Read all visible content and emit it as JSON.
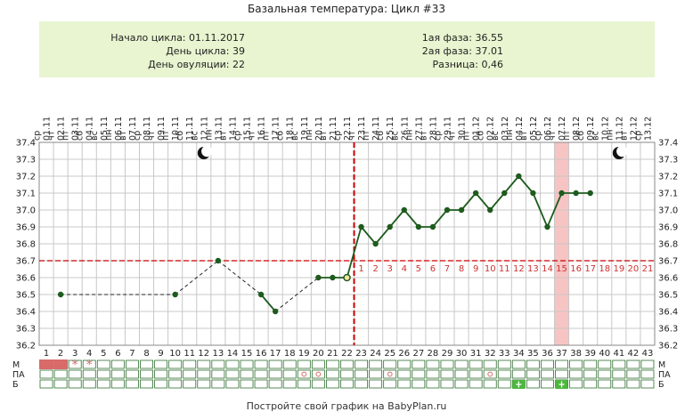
{
  "title": "Базальная температура: Цикл #33",
  "info": {
    "cycle_start": "Начало цикла: 01.11.2017",
    "cycle_day": "День цикла: 39",
    "ovulation_day": "День овуляции: 22",
    "phase1": "1ая фаза: 36.55",
    "phase2": "2ая фаза: 37.01",
    "difference": "Разница: 0,46"
  },
  "row_labels": {
    "m": "М",
    "pa": "ПА",
    "b": "Б"
  },
  "footer": "Постройте свой график на BabyPlan.ru",
  "colors": {
    "line": "#1e5b1e",
    "coverline": "#cc0000",
    "ovulation": "#cc0000",
    "highlight": "#f7c4c4",
    "info_bg": "#e8f5d0",
    "grid": "#c8c8c8",
    "menses": "#d86a6a",
    "b_mark": "#4cb83c"
  },
  "icons": [
    "moon-icon",
    "star-icon",
    "circle-icon",
    "plus-icon"
  ],
  "chart_data": {
    "type": "line",
    "title": "Базальная температура: Цикл #33",
    "days": [
      1,
      2,
      3,
      4,
      5,
      6,
      7,
      8,
      9,
      10,
      11,
      12,
      13,
      14,
      15,
      16,
      17,
      18,
      19,
      20,
      21,
      22,
      23,
      24,
      25,
      26,
      27,
      28,
      29,
      30,
      31,
      32,
      33,
      34,
      35,
      36,
      37,
      38,
      39,
      40,
      41,
      42,
      43
    ],
    "dates": [
      "01.11",
      "02.11",
      "03.11",
      "04.11",
      "05.11",
      "06.11",
      "07.11",
      "08.11",
      "09.11",
      "10.11",
      "11.11",
      "12.11",
      "13.11",
      "14.11",
      "15.11",
      "16.11",
      "17.11",
      "18.11",
      "19.11",
      "20.11",
      "21.11",
      "22.11",
      "23.11",
      "24.11",
      "25.11",
      "26.11",
      "27.11",
      "28.11",
      "29.11",
      "30.11",
      "01.12",
      "02.12",
      "03.12",
      "04.12",
      "05.12",
      "06.12",
      "07.12",
      "08.12",
      "09.12",
      "10.12",
      "11.12",
      "12.12",
      "13.12"
    ],
    "weekdays": [
      "ср",
      "чт",
      "пт",
      "сб",
      "вс",
      "пн",
      "вт",
      "ср",
      "чт",
      "пт",
      "сб",
      "вс",
      "пн",
      "вт",
      "ср",
      "чт",
      "пт",
      "сб",
      "вс",
      "пн",
      "вт",
      "ср",
      "чт",
      "пт",
      "сб",
      "вс",
      "пн",
      "вт",
      "ср",
      "чт",
      "пт",
      "сб",
      "вс",
      "пн",
      "вт",
      "ср",
      "чт",
      "пт",
      "сб",
      "вс",
      "пн",
      "вт",
      "ср"
    ],
    "y_ticks": [
      "37.4",
      "37.3",
      "37.2",
      "37.1",
      "37.0",
      "36.9",
      "36.8",
      "36.7",
      "36.6",
      "36.5",
      "36.4",
      "36.3",
      "36.2"
    ],
    "ylim": [
      36.2,
      37.4
    ],
    "coverline": 36.7,
    "ovulation_day": 22,
    "highlight_day": 37,
    "moon_days": [
      12,
      41
    ],
    "phase2_day_labels": [
      "1",
      "2",
      "3",
      "4",
      "5",
      "6",
      "7",
      "8",
      "9",
      "10",
      "11",
      "12",
      "13",
      "14",
      "15",
      "16",
      "17",
      "18",
      "19",
      "20",
      "21"
    ],
    "points": [
      {
        "day": 2,
        "temp": 36.5
      },
      {
        "day": 10,
        "temp": 36.5
      },
      {
        "day": 13,
        "temp": 36.7
      },
      {
        "day": 16,
        "temp": 36.5
      },
      {
        "day": 17,
        "temp": 36.4
      },
      {
        "day": 20,
        "temp": 36.6
      },
      {
        "day": 21,
        "temp": 36.6
      },
      {
        "day": 22,
        "temp": 36.6
      },
      {
        "day": 23,
        "temp": 36.9
      },
      {
        "day": 24,
        "temp": 36.8
      },
      {
        "day": 25,
        "temp": 36.9
      },
      {
        "day": 26,
        "temp": 37.0
      },
      {
        "day": 27,
        "temp": 36.9
      },
      {
        "day": 28,
        "temp": 36.9
      },
      {
        "day": 29,
        "temp": 37.0
      },
      {
        "day": 30,
        "temp": 37.0
      },
      {
        "day": 31,
        "temp": 37.1
      },
      {
        "day": 32,
        "temp": 37.0
      },
      {
        "day": 33,
        "temp": 37.1
      },
      {
        "day": 34,
        "temp": 37.2
      },
      {
        "day": 35,
        "temp": 37.1
      },
      {
        "day": 36,
        "temp": 36.9
      },
      {
        "day": 37,
        "temp": 37.1
      },
      {
        "day": 38,
        "temp": 37.1
      },
      {
        "day": 39,
        "temp": 37.1
      }
    ],
    "m_menses_days": [
      1,
      2
    ],
    "m_star_days": [
      3,
      4
    ],
    "pa_circle_days": [
      19,
      20,
      25,
      32
    ],
    "b_plus_days": [
      34,
      37
    ]
  }
}
